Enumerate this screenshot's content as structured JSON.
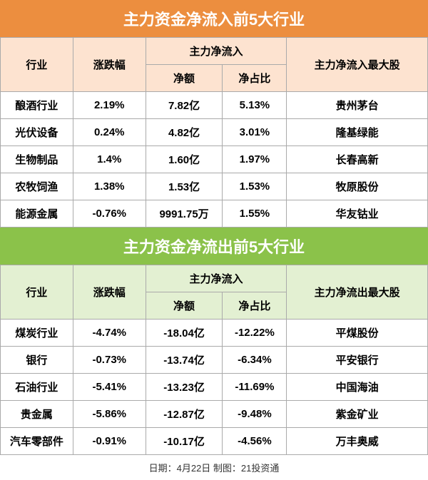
{
  "top": {
    "title": "主力资金净流入前5大行业",
    "title_bg": "#ec8e3f",
    "header_bg": "#fde3d0",
    "headers": {
      "industry": "行业",
      "change": "涨跌幅",
      "netflow": "主力净流入",
      "netamt": "净额",
      "netpct": "净占比",
      "stock": "主力净流入最大股"
    },
    "rows": [
      {
        "industry": "酿酒行业",
        "change": "2.19%",
        "netamt": "7.82亿",
        "netpct": "5.13%",
        "stock": "贵州茅台"
      },
      {
        "industry": "光伏设备",
        "change": "0.24%",
        "netamt": "4.82亿",
        "netpct": "3.01%",
        "stock": "隆基绿能"
      },
      {
        "industry": "生物制品",
        "change": "1.4%",
        "netamt": "1.60亿",
        "netpct": "1.97%",
        "stock": "长春高新"
      },
      {
        "industry": "农牧饲渔",
        "change": "1.38%",
        "netamt": "1.53亿",
        "netpct": "1.53%",
        "stock": "牧原股份"
      },
      {
        "industry": "能源金属",
        "change": "-0.76%",
        "netamt": "9991.75万",
        "netpct": "1.55%",
        "stock": "华友钴业"
      }
    ]
  },
  "bottom": {
    "title": "主力资金净流出前5大行业",
    "title_bg": "#8bc24a",
    "header_bg": "#e3f0d2",
    "headers": {
      "industry": "行业",
      "change": "涨跌幅",
      "netflow": "主力净流入",
      "netamt": "净额",
      "netpct": "净占比",
      "stock": "主力净流出最大股"
    },
    "rows": [
      {
        "industry": "煤炭行业",
        "change": "-4.74%",
        "netamt": "-18.04亿",
        "netpct": "-12.22%",
        "stock": "平煤股份"
      },
      {
        "industry": "银行",
        "change": "-0.73%",
        "netamt": "-13.74亿",
        "netpct": "-6.34%",
        "stock": "平安银行"
      },
      {
        "industry": "石油行业",
        "change": "-5.41%",
        "netamt": "-13.23亿",
        "netpct": "-11.69%",
        "stock": "中国海油"
      },
      {
        "industry": "贵金属",
        "change": "-5.86%",
        "netamt": "-12.87亿",
        "netpct": "-9.48%",
        "stock": "紫金矿业"
      },
      {
        "industry": "汽车零部件",
        "change": "-0.91%",
        "netamt": "-10.17亿",
        "netpct": "-4.56%",
        "stock": "万丰奥威"
      }
    ]
  },
  "footer": "日期：4月22日  制图：21投资通"
}
